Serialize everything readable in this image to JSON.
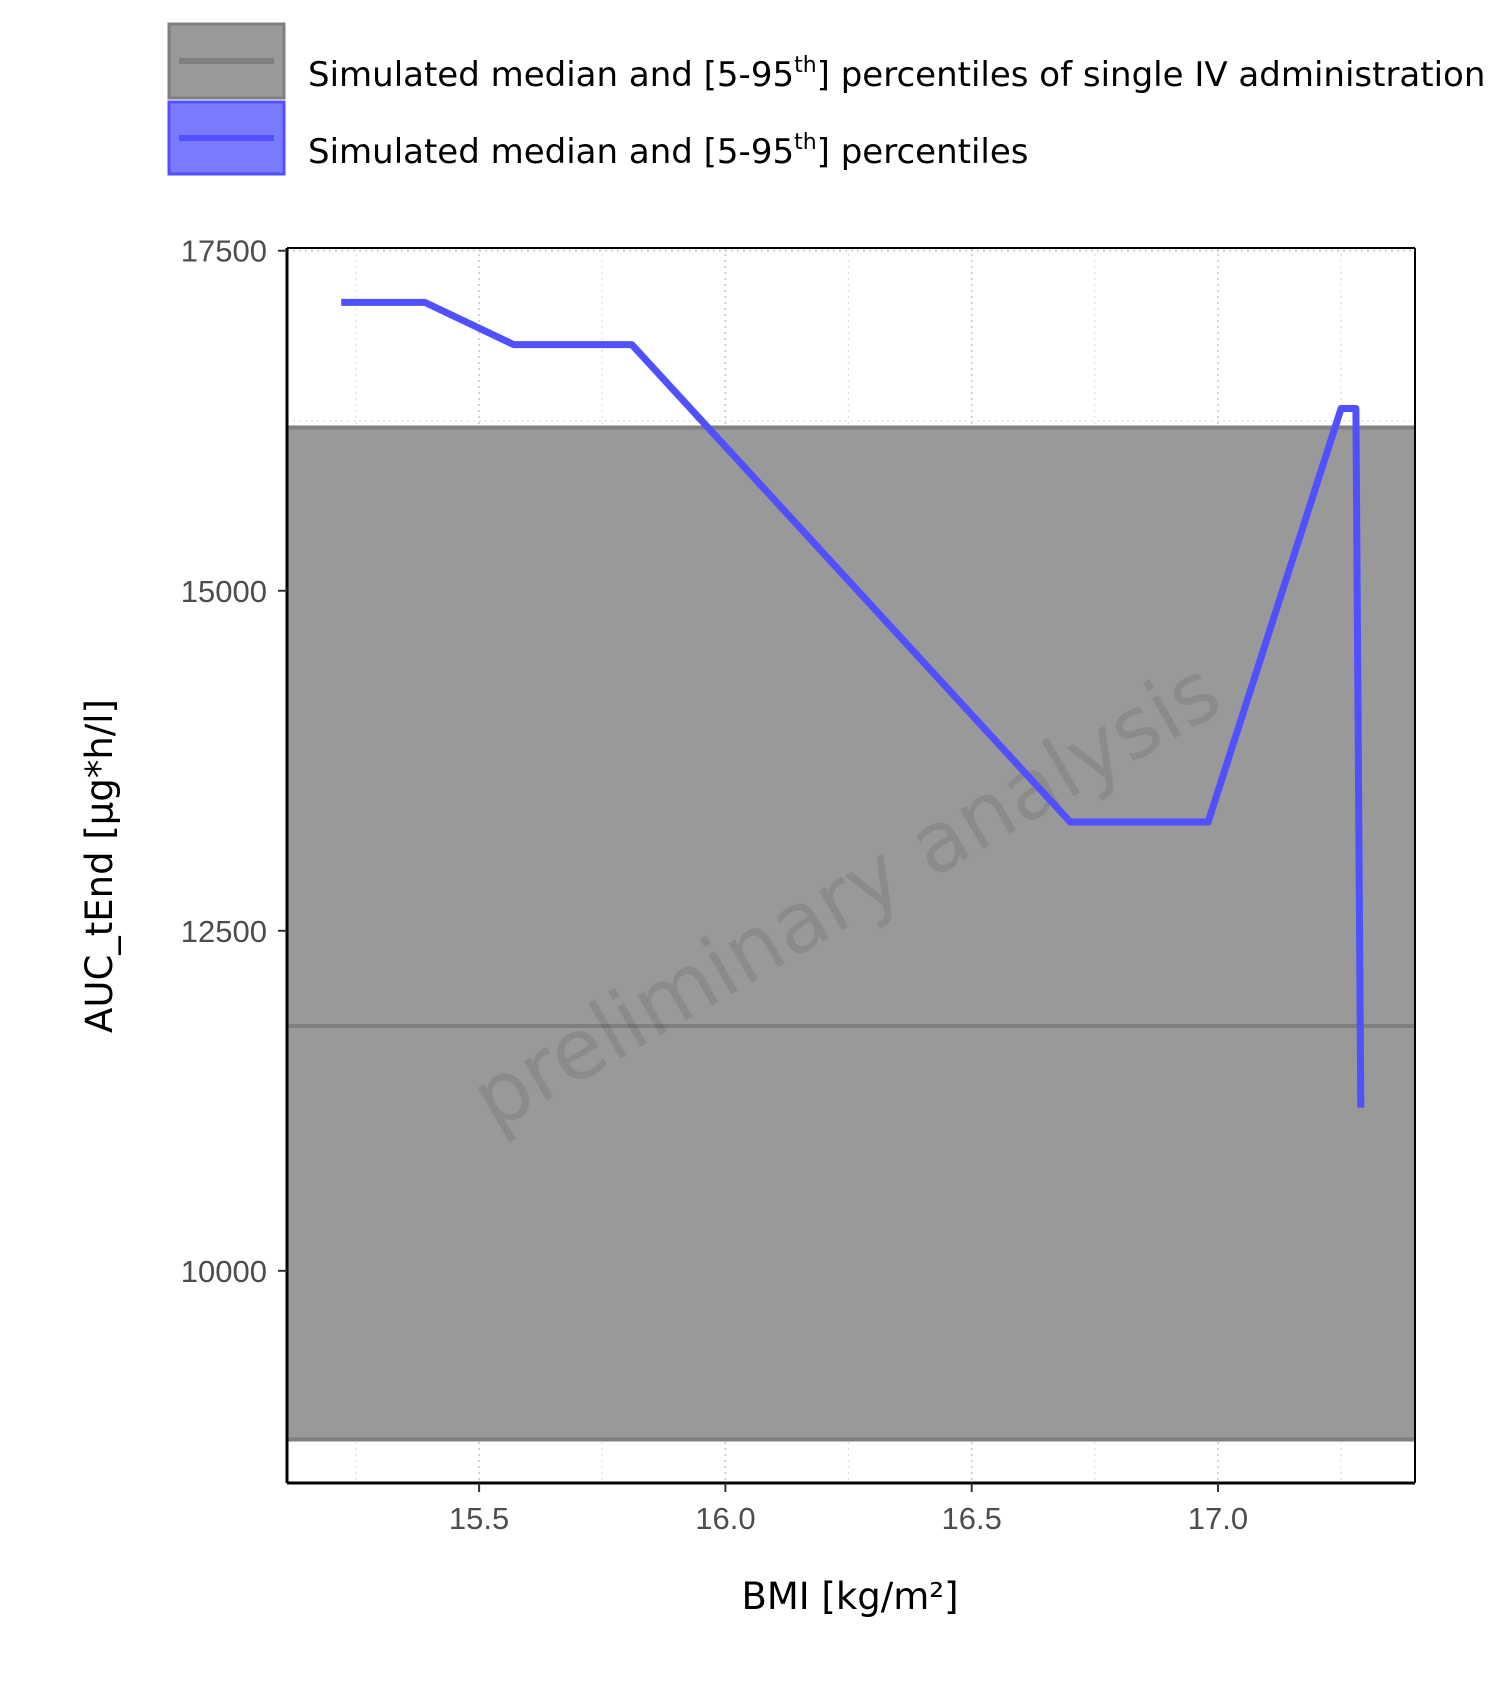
{
  "chart_data": {
    "type": "line",
    "xlabel": "BMI [kg/m²]",
    "ylabel": "AUC_tEnd [µg*h/l]",
    "xlim": [
      15.11,
      17.4
    ],
    "ylim": [
      8440,
      17520
    ],
    "x_ticks": [
      "15.5",
      "16.0",
      "16.5",
      "17.0"
    ],
    "x_tick_values": [
      15.5,
      16.0,
      16.5,
      17.0
    ],
    "y_ticks": [
      "10000",
      "12500",
      "15000",
      "17500"
    ],
    "y_tick_values": [
      10000,
      12500,
      15000,
      17500
    ],
    "grid": true,
    "legend_position": "top",
    "watermark": "preliminary analysis",
    "reference": {
      "name": "Simulated median and [5-95th] percentiles of single IV administration",
      "name_parts": [
        "Simulated median and [5-95",
        "th",
        "] percentiles of single IV administration"
      ],
      "median": 11800,
      "p5": 8760,
      "p95": 16200,
      "color": "#7f7f7f",
      "fill_color": "#999999"
    },
    "series": [
      {
        "name": "Simulated median and [5-95th] percentiles",
        "name_parts": [
          "Simulated median and [5-95",
          "th",
          "] percentiles"
        ],
        "color": "#5050ff",
        "x": [
          15.22,
          15.39,
          15.57,
          15.81,
          16.7,
          16.98,
          17.25,
          17.28,
          17.29
        ],
        "y": [
          17120,
          17120,
          16810,
          16810,
          13300,
          13300,
          16340,
          16340,
          11200
        ]
      }
    ]
  }
}
